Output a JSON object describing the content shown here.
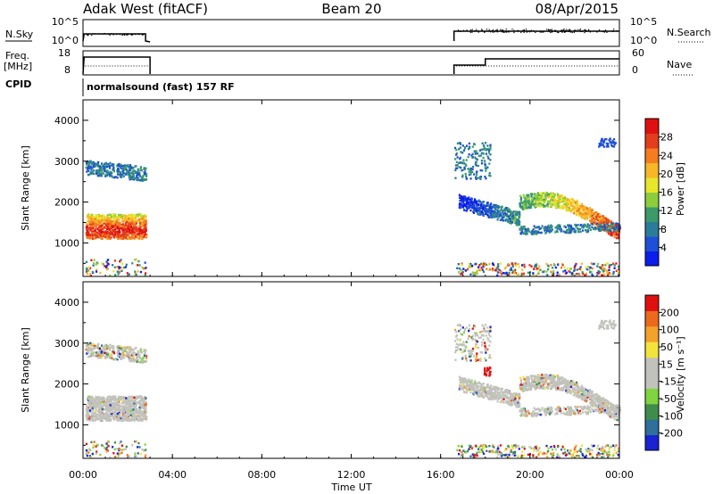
{
  "header": {
    "station": "Adak West (fitACF)",
    "beam": "Beam 20",
    "date": "08/Apr/2015"
  },
  "labels": {
    "nsky": "N.Sky",
    "nsearch": "N.Search",
    "freq_line1": "Freq.",
    "freq_line2": "[MHz]",
    "nave": "Nave",
    "cpid": "CPID",
    "program": "normalsound (fast) 157 RF"
  },
  "noise_ticks": {
    "left": [
      "10^5",
      "10^0"
    ],
    "right": [
      "10^5",
      "10^0"
    ]
  },
  "freq_ticks": {
    "left": [
      "18",
      "8"
    ],
    "right": [
      "60",
      "0"
    ]
  },
  "chart_data": [
    {
      "type": "heatmap",
      "name": "power",
      "ylabel": "Slant Range [km]",
      "ylim": [
        180,
        4500
      ],
      "yticks": [
        1000,
        2000,
        3000,
        4000
      ],
      "xlim_hours": [
        0,
        24
      ],
      "colorbar": {
        "label": "Power [dB]",
        "colors": [
          "#0b1eea",
          "#1f4fd6",
          "#2a7d9a",
          "#3b9a6a",
          "#8ccd3c",
          "#e8e62a",
          "#f6b728",
          "#f57d1f",
          "#e33d1c",
          "#e01010"
        ],
        "ticks": [
          "4",
          "8",
          "12",
          "16",
          "20",
          "24",
          "28"
        ]
      }
    },
    {
      "type": "heatmap",
      "name": "velocity",
      "ylabel": "Slant Range [km]",
      "ylim": [
        180,
        4500
      ],
      "yticks": [
        1000,
        2000,
        3000,
        4000
      ],
      "xlim_hours": [
        0,
        24
      ],
      "colorbar": {
        "label": "Velocity [m s⁻¹]",
        "colors": [
          "#1a23d1",
          "#2e6f9b",
          "#3f8d4b",
          "#7fd43f",
          "#c2c2bc",
          "#c2c2bc",
          "#f2e43a",
          "#f4a22a",
          "#ec6a1e",
          "#e01010"
        ],
        "ticks": [
          "200",
          "100",
          "50",
          "15",
          "-15",
          "-50",
          "-100",
          "-200"
        ]
      }
    }
  ],
  "xaxis": {
    "label": "Time UT",
    "ticks": [
      "00:00",
      "04:00",
      "08:00",
      "12:00",
      "16:00",
      "20:00",
      "00:00"
    ]
  }
}
